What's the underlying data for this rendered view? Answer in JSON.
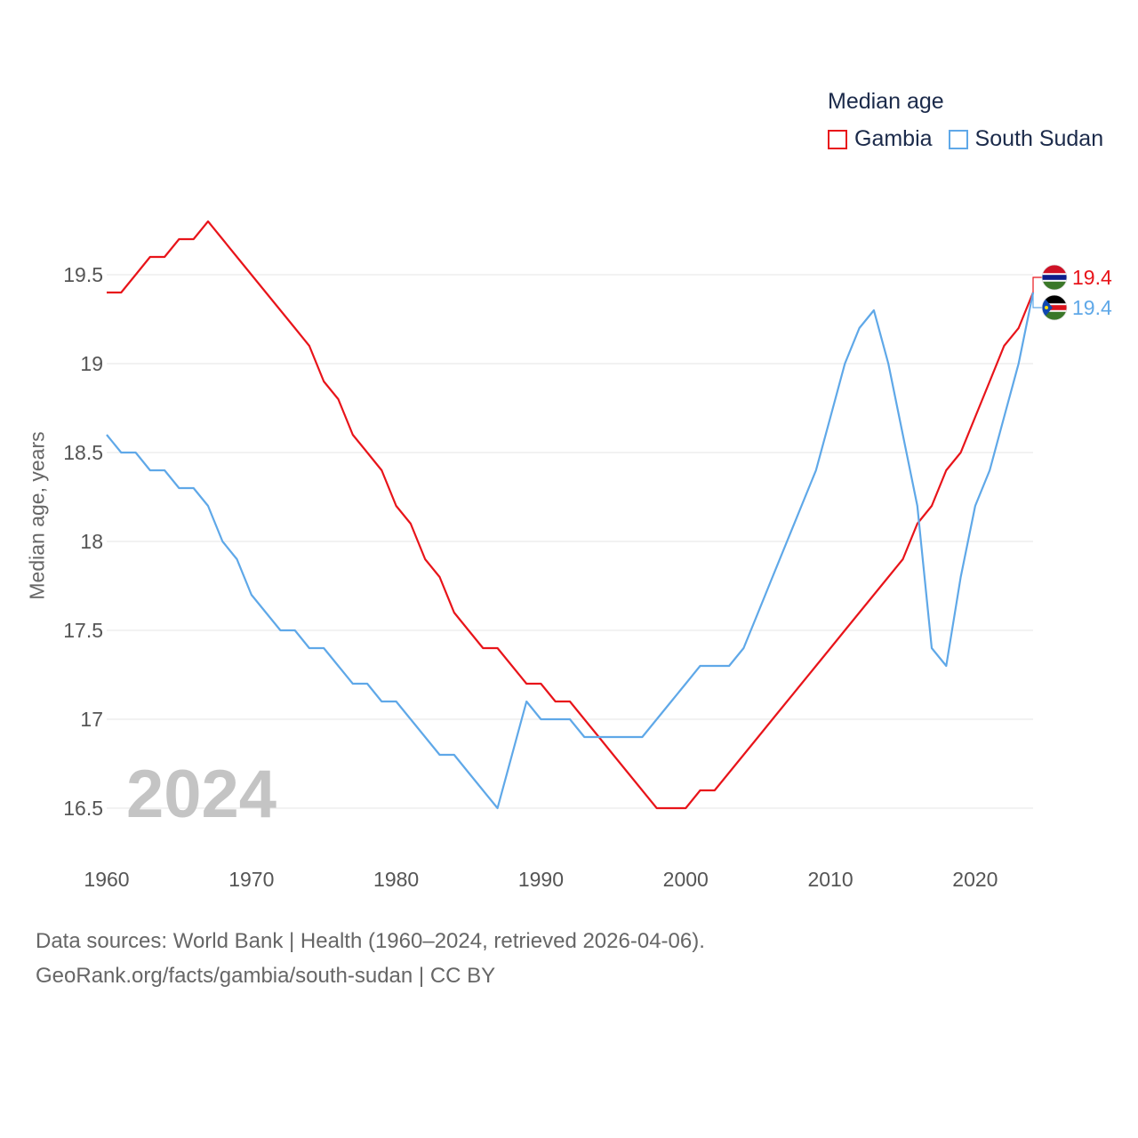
{
  "legend": {
    "title": "Median age",
    "items": [
      {
        "label": "Gambia",
        "color": "#e8141a"
      },
      {
        "label": "South Sudan",
        "color": "#5fa8e8"
      }
    ]
  },
  "year_label": "2024",
  "footer": {
    "line1": "Data sources: World Bank | Health (1960–2024, retrieved 2026-04-06).",
    "line2": "GeoRank.org/facts/gambia/south-sudan | CC BY"
  },
  "chart_data": {
    "type": "line",
    "title": "Median age",
    "xlabel": "",
    "ylabel": "Median age, years",
    "xlim": [
      1960,
      2024
    ],
    "ylim": [
      16.5,
      19.5
    ],
    "x_ticks": [
      1960,
      1970,
      1980,
      1990,
      2000,
      2010,
      2020
    ],
    "y_ticks": [
      16.5,
      17,
      17.5,
      18,
      18.5,
      19,
      19.5
    ],
    "y_tick_labels": [
      "16.5",
      "17",
      "17.5",
      "18",
      "18.5",
      "19",
      "19.5"
    ],
    "series": [
      {
        "name": "Gambia",
        "color": "#e8141a",
        "end_label": "19.4",
        "x": [
          1960,
          1961,
          1962,
          1963,
          1964,
          1965,
          1966,
          1967,
          1968,
          1969,
          1970,
          1971,
          1972,
          1973,
          1974,
          1975,
          1976,
          1977,
          1978,
          1979,
          1980,
          1981,
          1982,
          1983,
          1984,
          1985,
          1986,
          1987,
          1988,
          1989,
          1990,
          1991,
          1992,
          1993,
          1994,
          1995,
          1996,
          1997,
          1998,
          1999,
          2000,
          2001,
          2002,
          2003,
          2004,
          2005,
          2006,
          2007,
          2008,
          2009,
          2010,
          2011,
          2012,
          2013,
          2014,
          2015,
          2016,
          2017,
          2018,
          2019,
          2020,
          2021,
          2022,
          2023,
          2024
        ],
        "values": [
          19.4,
          19.4,
          19.5,
          19.6,
          19.6,
          19.7,
          19.7,
          19.8,
          19.7,
          19.6,
          19.5,
          19.4,
          19.3,
          19.2,
          19.1,
          18.9,
          18.8,
          18.6,
          18.5,
          18.4,
          18.2,
          18.1,
          17.9,
          17.8,
          17.6,
          17.5,
          17.4,
          17.4,
          17.3,
          17.2,
          17.2,
          17.1,
          17.1,
          17.0,
          16.9,
          16.8,
          16.7,
          16.6,
          16.5,
          16.5,
          16.5,
          16.6,
          16.6,
          16.7,
          16.8,
          16.9,
          17.0,
          17.1,
          17.2,
          17.3,
          17.4,
          17.5,
          17.6,
          17.7,
          17.8,
          17.9,
          18.1,
          18.2,
          18.4,
          18.5,
          18.7,
          18.9,
          19.1,
          19.2,
          19.4
        ]
      },
      {
        "name": "South Sudan",
        "color": "#5fa8e8",
        "end_label": "19.4",
        "x": [
          1960,
          1961,
          1962,
          1963,
          1964,
          1965,
          1966,
          1967,
          1968,
          1969,
          1970,
          1971,
          1972,
          1973,
          1974,
          1975,
          1976,
          1977,
          1978,
          1979,
          1980,
          1981,
          1982,
          1983,
          1984,
          1985,
          1986,
          1987,
          1988,
          1989,
          1990,
          1991,
          1992,
          1993,
          1994,
          1995,
          1996,
          1997,
          1998,
          1999,
          2000,
          2001,
          2002,
          2003,
          2004,
          2005,
          2006,
          2007,
          2008,
          2009,
          2010,
          2011,
          2012,
          2013,
          2014,
          2015,
          2016,
          2017,
          2018,
          2019,
          2020,
          2021,
          2022,
          2023,
          2024
        ],
        "values": [
          18.6,
          18.5,
          18.5,
          18.4,
          18.4,
          18.3,
          18.3,
          18.2,
          18.0,
          17.9,
          17.7,
          17.6,
          17.5,
          17.5,
          17.4,
          17.4,
          17.3,
          17.2,
          17.2,
          17.1,
          17.1,
          17.0,
          16.9,
          16.8,
          16.8,
          16.7,
          16.6,
          16.5,
          16.8,
          17.1,
          17.0,
          17.0,
          17.0,
          16.9,
          16.9,
          16.9,
          16.9,
          16.9,
          17.0,
          17.1,
          17.2,
          17.3,
          17.3,
          17.3,
          17.4,
          17.6,
          17.8,
          18.0,
          18.2,
          18.4,
          18.7,
          19.0,
          19.2,
          19.3,
          19.0,
          18.6,
          18.2,
          17.4,
          17.3,
          17.8,
          18.2,
          18.4,
          18.7,
          19.0,
          19.4
        ]
      }
    ]
  }
}
